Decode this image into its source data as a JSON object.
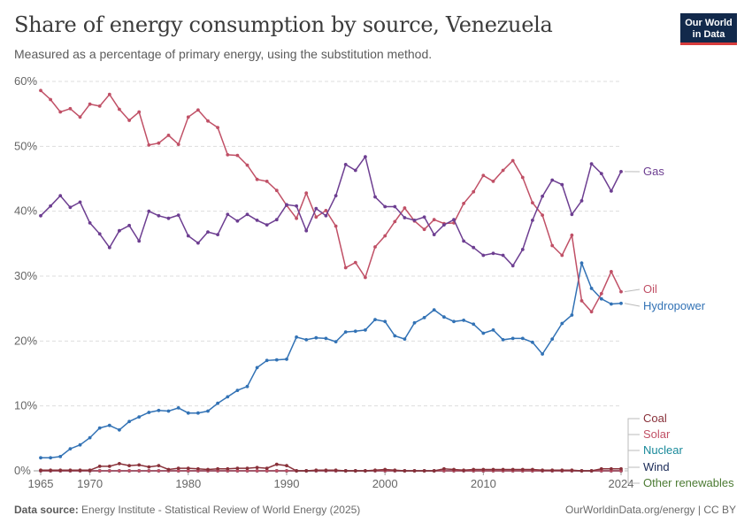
{
  "header": {
    "title": "Share of energy consumption by source, Venezuela",
    "subtitle": "Measured as a percentage of primary energy, using the substitution method.",
    "logo_line1": "Our World",
    "logo_line2": "in Data"
  },
  "footer": {
    "source_label": "Data source:",
    "source_text": "Energy Institute - Statistical Review of World Energy (2025)",
    "right_text": "OurWorldinData.org/energy | CC BY"
  },
  "colors": {
    "gas": "#6d3e91",
    "oil": "#c05066",
    "hydropower": "#3272b5",
    "coal": "#883039",
    "solar": "#c15065",
    "nuclear": "#18899a",
    "wind": "#1a2a57",
    "other_renewables": "#4c7b33",
    "grid": "#dddddd",
    "axis_text": "#666666"
  },
  "chart_data": {
    "type": "line",
    "title": "Share of energy consumption by source, Venezuela",
    "y_unit": "%",
    "ylim": [
      0,
      60
    ],
    "y_ticks": [
      0,
      10,
      20,
      30,
      40,
      50,
      60
    ],
    "y_tick_labels": [
      "0%",
      "10%",
      "20%",
      "30%",
      "40%",
      "50%",
      "60%"
    ],
    "xlim": [
      1965,
      2024
    ],
    "x_ticks": [
      1965,
      1970,
      1980,
      1990,
      2000,
      2010,
      2024
    ],
    "x_tick_labels": [
      "1965",
      "1970",
      "1980",
      "1990",
      "2000",
      "2010",
      "2024"
    ],
    "grid": "horizontal dashed",
    "legend": "right, line-end labels",
    "x_start": 1965,
    "series": [
      {
        "name": "Gas",
        "color_key": "gas",
        "values": [
          39.3,
          40.8,
          42.4,
          40.6,
          41.4,
          38.2,
          36.5,
          34.4,
          37.0,
          37.8,
          35.4,
          40.0,
          39.3,
          38.9,
          39.4,
          36.2,
          35.1,
          36.8,
          36.4,
          39.5,
          38.5,
          39.5,
          38.6,
          37.9,
          38.7,
          41.0,
          40.8,
          37.0,
          40.4,
          39.3,
          42.4,
          47.2,
          46.3,
          48.4,
          42.2,
          40.7,
          40.7,
          39.0,
          38.6,
          39.1,
          36.4,
          37.9,
          38.7,
          35.4,
          34.4,
          33.2,
          33.5,
          33.2,
          31.6,
          34.1,
          38.6,
          42.3,
          44.8,
          44.1,
          39.5,
          41.6,
          47.3,
          45.8,
          43.1,
          46.1
        ]
      },
      {
        "name": "Oil",
        "color_key": "oil",
        "values": [
          58.6,
          57.2,
          55.3,
          55.8,
          54.5,
          56.5,
          56.2,
          58.0,
          55.7,
          54.0,
          55.3,
          50.2,
          50.5,
          51.7,
          50.3,
          54.5,
          55.6,
          53.9,
          52.9,
          48.7,
          48.6,
          47.1,
          44.9,
          44.6,
          43.2,
          40.9,
          38.9,
          42.8,
          39.1,
          40.1,
          37.7,
          31.3,
          32.1,
          29.8,
          34.5,
          36.2,
          38.4,
          40.5,
          38.5,
          37.2,
          38.7,
          38.1,
          38.2,
          41.2,
          43.0,
          45.5,
          44.6,
          46.3,
          47.8,
          45.2,
          41.3,
          39.4,
          34.7,
          33.2,
          36.3,
          26.2,
          24.5,
          27.3,
          30.7,
          27.6
        ]
      },
      {
        "name": "Hydropower",
        "color_key": "hydropower",
        "values": [
          2.0,
          2.0,
          2.2,
          3.4,
          4.0,
          5.1,
          6.6,
          7.0,
          6.3,
          7.6,
          8.3,
          9.0,
          9.3,
          9.2,
          9.7,
          8.9,
          8.9,
          9.2,
          10.4,
          11.4,
          12.4,
          13.0,
          15.9,
          17.0,
          17.1,
          17.2,
          20.6,
          20.2,
          20.5,
          20.4,
          19.9,
          21.4,
          21.5,
          21.7,
          23.3,
          23.0,
          20.8,
          20.3,
          22.8,
          23.6,
          24.8,
          23.7,
          23.0,
          23.2,
          22.6,
          21.2,
          21.7,
          20.2,
          20.4,
          20.4,
          19.8,
          18.0,
          20.3,
          22.7,
          24.0,
          32.0,
          28.1,
          26.5,
          25.7,
          25.8
        ]
      },
      {
        "name": "Coal",
        "color_key": "coal",
        "values": [
          0.1,
          0.1,
          0.1,
          0.1,
          0.1,
          0.1,
          0.7,
          0.7,
          1.1,
          0.8,
          0.9,
          0.6,
          0.8,
          0.2,
          0.4,
          0.4,
          0.3,
          0.2,
          0.3,
          0.3,
          0.4,
          0.4,
          0.5,
          0.4,
          1.0,
          0.8,
          0.0,
          0.0,
          0.1,
          0.1,
          0.1,
          0.0,
          0.0,
          0.0,
          0.1,
          0.2,
          0.1,
          0.0,
          0.0,
          0.0,
          0.0,
          0.3,
          0.2,
          0.1,
          0.2,
          0.2,
          0.2,
          0.2,
          0.2,
          0.2,
          0.2,
          0.1,
          0.1,
          0.1,
          0.1,
          0.0,
          0.0,
          0.3,
          0.3,
          0.3
        ]
      },
      {
        "name": "Solar",
        "color_key": "solar",
        "values": [
          0,
          0,
          0,
          0,
          0,
          0,
          0,
          0,
          0,
          0,
          0,
          0,
          0,
          0,
          0,
          0,
          0,
          0,
          0,
          0,
          0,
          0,
          0,
          0,
          0,
          0,
          0,
          0,
          0,
          0,
          0,
          0,
          0,
          0,
          0,
          0,
          0,
          0,
          0,
          0,
          0,
          0,
          0,
          0,
          0,
          0,
          0,
          0,
          0,
          0,
          0,
          0,
          0,
          0,
          0,
          0,
          0,
          0,
          0,
          0
        ]
      },
      {
        "name": "Nuclear",
        "color_key": "nuclear",
        "values": [
          0,
          0,
          0,
          0,
          0,
          0,
          0,
          0,
          0,
          0,
          0,
          0,
          0,
          0,
          0,
          0,
          0,
          0,
          0,
          0,
          0,
          0,
          0,
          0,
          0,
          0,
          0,
          0,
          0,
          0,
          0,
          0,
          0,
          0,
          0,
          0,
          0,
          0,
          0,
          0,
          0,
          0,
          0,
          0,
          0,
          0,
          0,
          0,
          0,
          0,
          0,
          0,
          0,
          0,
          0,
          0,
          0,
          0,
          0,
          0
        ]
      },
      {
        "name": "Wind",
        "color_key": "wind",
        "values": [
          0,
          0,
          0,
          0,
          0,
          0,
          0,
          0,
          0,
          0,
          0,
          0,
          0,
          0,
          0,
          0,
          0,
          0,
          0,
          0,
          0,
          0,
          0,
          0,
          0,
          0,
          0,
          0,
          0,
          0,
          0,
          0,
          0,
          0,
          0,
          0,
          0,
          0,
          0,
          0,
          0,
          0,
          0,
          0,
          0,
          0,
          0,
          0,
          0,
          0,
          0,
          0,
          0,
          0,
          0,
          0,
          0,
          0,
          0,
          0
        ]
      },
      {
        "name": "Other renewables",
        "color_key": "other_renewables",
        "values": [
          0,
          0,
          0,
          0,
          0,
          0,
          0,
          0,
          0,
          0,
          0,
          0,
          0,
          0,
          0,
          0,
          0,
          0,
          0,
          0,
          0,
          0,
          0,
          0,
          0,
          0,
          0,
          0,
          0,
          0,
          0,
          0,
          0,
          0,
          0,
          0,
          0,
          0,
          0,
          0,
          0,
          0,
          0,
          0,
          0,
          0,
          0,
          0,
          0,
          0,
          0,
          0,
          0,
          0,
          0,
          0,
          0,
          0,
          0,
          0
        ]
      }
    ]
  }
}
